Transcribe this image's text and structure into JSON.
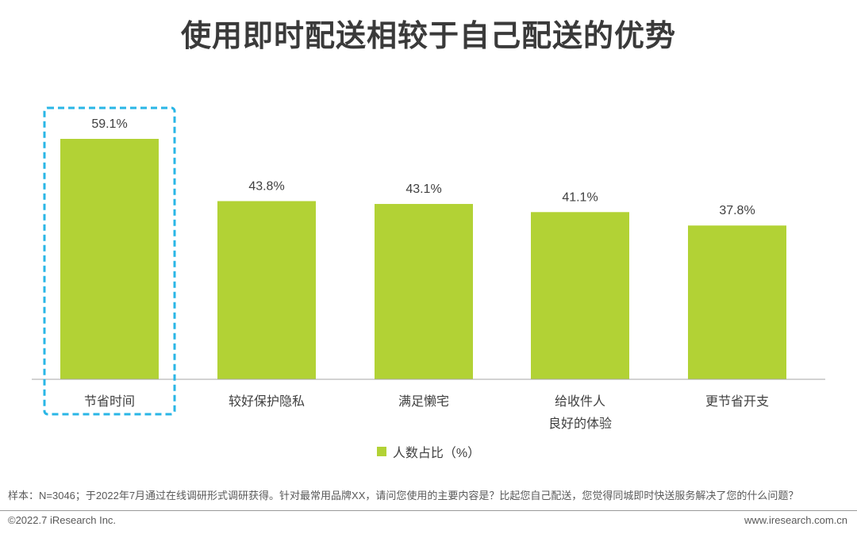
{
  "title": "使用即时配送相较于自己配送的优势",
  "colors": {
    "bar": "#b2d235",
    "highlight_border": "#29b6e6",
    "axis": "#a6a6a6"
  },
  "chart_data": {
    "type": "bar",
    "categories": [
      [
        "节省时间"
      ],
      [
        "较好保护隐私"
      ],
      [
        "满足懒宅"
      ],
      [
        "给收件人",
        "良好的体验"
      ],
      [
        "更节省开支"
      ]
    ],
    "series": [
      {
        "name": "人数占比（%）",
        "values": [
          59.1,
          43.8,
          43.1,
          41.1,
          37.8
        ]
      }
    ],
    "value_labels": [
      "59.1%",
      "43.8%",
      "43.1%",
      "41.1%",
      "37.8%"
    ],
    "ylim": [
      0,
      59.1
    ],
    "highlighted_category_index": 0,
    "legend_position": "bottom",
    "grid": false
  },
  "legend_label": "人数占比（%）",
  "footnote": "样本：N=3046；于2022年7月通过在线调研形式调研获得。针对最常用品牌XX，请问您使用的主要内容是？比起您自己配送，您觉得同城即时快送服务解决了您的什么问题？",
  "copyright": "©2022.7 iResearch Inc.",
  "website": "www.iresearch.com.cn"
}
